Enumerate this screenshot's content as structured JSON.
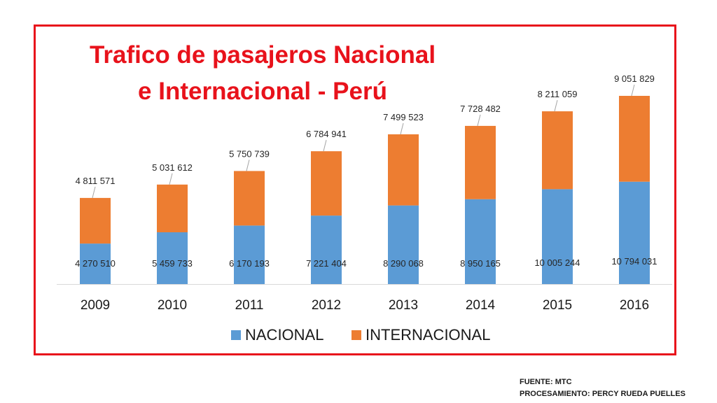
{
  "title_line1": "Trafico de pasajeros Nacional",
  "title_line2": "e Internacional - Perú",
  "footer": {
    "source": "FUENTE: MTC",
    "processing": "PROCESAMIENTO: PERCY RUEDA PUELLES"
  },
  "colors": {
    "nacional": "#5b9bd5",
    "internacional": "#ed7d31",
    "frame": "#e8121b",
    "title": "#e8121b"
  },
  "chart_data": {
    "type": "bar",
    "stacked": true,
    "title": "Trafico de pasajeros Nacional e Internacional - Perú",
    "categories": [
      "2009",
      "2010",
      "2011",
      "2012",
      "2013",
      "2014",
      "2015",
      "2016"
    ],
    "series": [
      {
        "name": "NACIONAL",
        "values": [
          4270510,
          5459733,
          6170193,
          7221404,
          8290068,
          8950165,
          10005244,
          10794031
        ],
        "labels": [
          "4 270 510",
          "5 459 733",
          "6 170 193",
          "7 221 404",
          "8 290 068",
          "8 950 165",
          "10 005 244",
          "10 794 031"
        ]
      },
      {
        "name": "INTERNACIONAL",
        "values": [
          4811571,
          5031612,
          5750739,
          6784941,
          7499523,
          7728482,
          8211059,
          9051829
        ],
        "labels": [
          "4 811 571",
          "5 031 612",
          "5 750 739",
          "6 784 941",
          "7 499 523",
          "7 728 482",
          "8 211 059",
          "9 051 829"
        ]
      }
    ],
    "legend_position": "bottom",
    "grid": false
  }
}
